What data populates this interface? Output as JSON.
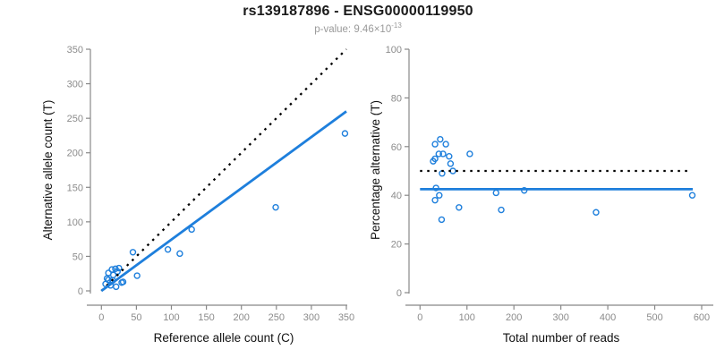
{
  "header": {
    "title": "rs139187896 - ENSG00000119950",
    "pvalue_prefix": "p-value: 9.46×10",
    "pvalue_exponent": "-13"
  },
  "colors": {
    "point": "#1e7fdc",
    "fit_line": "#1e7fdc",
    "identity_line": "#000000",
    "axis": "#888888",
    "tick_label": "#8b8b8b",
    "axis_title": "#111111",
    "title": "#1a1a1a",
    "subtitle": "#9a9a9a"
  },
  "chart_data": [
    {
      "type": "scatter",
      "name": "allele-count-scatter",
      "xlabel": "Reference allele count (C)",
      "ylabel": "Alternative allele count (T)",
      "xlim": [
        0,
        350
      ],
      "ylim": [
        0,
        350
      ],
      "xticks": [
        0,
        50,
        100,
        150,
        200,
        250,
        300,
        350
      ],
      "yticks": [
        0,
        50,
        100,
        150,
        200,
        250,
        300,
        350
      ],
      "grid": false,
      "legend": "none",
      "points": [
        [
          6,
          10
        ],
        [
          8,
          18
        ],
        [
          10,
          16
        ],
        [
          10,
          26
        ],
        [
          13,
          8
        ],
        [
          15,
          31
        ],
        [
          16,
          15
        ],
        [
          17,
          23
        ],
        [
          20,
          32
        ],
        [
          21,
          6
        ],
        [
          23,
          28
        ],
        [
          25,
          33
        ],
        [
          29,
          12
        ],
        [
          31,
          13
        ],
        [
          45,
          56
        ],
        [
          51,
          22
        ],
        [
          95,
          60
        ],
        [
          112,
          54
        ],
        [
          129,
          89
        ],
        [
          249,
          121
        ],
        [
          348,
          228
        ]
      ],
      "lines": [
        {
          "name": "identity-line",
          "style": "dotted",
          "color": "#000000",
          "x1": 0,
          "y1": 0,
          "x2": 350,
          "y2": 350
        },
        {
          "name": "fit-line",
          "style": "solid",
          "color": "#1e7fdc",
          "x1": 0,
          "y1": 0,
          "x2": 350,
          "y2": 260
        }
      ]
    },
    {
      "type": "scatter",
      "name": "percentage-scatter",
      "xlabel": "Total number of reads",
      "ylabel": "Percentage alternative (T)",
      "xlim": [
        0,
        600
      ],
      "ylim": [
        0,
        100
      ],
      "xticks": [
        0,
        100,
        200,
        300,
        400,
        500,
        600
      ],
      "yticks": [
        0,
        20,
        40,
        60,
        80,
        100
      ],
      "grid": false,
      "legend": "none",
      "points": [
        [
          28,
          54
        ],
        [
          32,
          61
        ],
        [
          32,
          55
        ],
        [
          32,
          38
        ],
        [
          34,
          43
        ],
        [
          40,
          57
        ],
        [
          41,
          40
        ],
        [
          43,
          63
        ],
        [
          46,
          30
        ],
        [
          47,
          49
        ],
        [
          49,
          57
        ],
        [
          55,
          61
        ],
        [
          62,
          56
        ],
        [
          65,
          53
        ],
        [
          70,
          50
        ],
        [
          83,
          35
        ],
        [
          106,
          57
        ],
        [
          162,
          41
        ],
        [
          173,
          34
        ],
        [
          222,
          42
        ],
        [
          375,
          33
        ],
        [
          580,
          40
        ]
      ],
      "lines": [
        {
          "name": "expected-50pct-line",
          "style": "dotted",
          "color": "#000000",
          "x1": 0,
          "y1": 50,
          "x2": 570,
          "y2": 50
        },
        {
          "name": "mean-pct-line",
          "style": "solid",
          "color": "#1e7fdc",
          "x1": 0,
          "y1": 42.5,
          "x2": 581,
          "y2": 42.5
        }
      ]
    }
  ]
}
